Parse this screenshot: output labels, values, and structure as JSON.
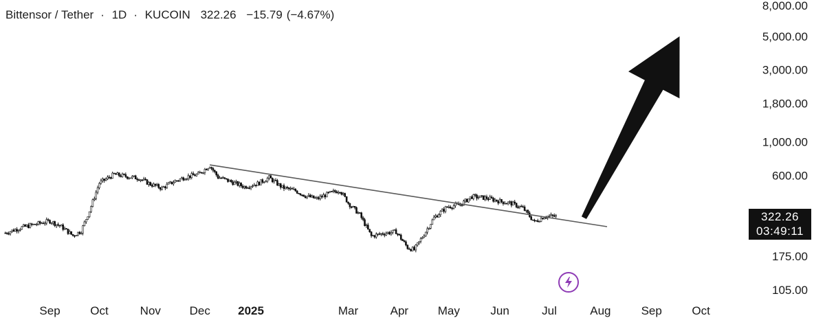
{
  "header": {
    "pair": "Bittensor / Tether",
    "interval": "1D",
    "exchange": "KUCOIN",
    "last": "322.26",
    "change": "−15.79",
    "change_pct": "(−4.67%)"
  },
  "price_label": {
    "price": "322.26",
    "countdown": "03:49:11"
  },
  "bolt": {
    "icon": "lightning-icon",
    "color": "#8e3bb5"
  },
  "chart_data": {
    "type": "candlestick",
    "scale": "log",
    "ylim": [
      75,
      8000
    ],
    "y_ticks": [
      "8,000.00",
      "5,000.00",
      "3,000.00",
      "1,800.00",
      "1,000.00",
      "600.00",
      "175.00",
      "105.00"
    ],
    "y_tick_values": [
      8000,
      5000,
      3000,
      1800,
      1000,
      600,
      175,
      105
    ],
    "x_ticks": [
      "Sep",
      "Oct",
      "Nov",
      "Dec",
      "2025",
      "Mar",
      "Apr",
      "May",
      "Jun",
      "Jul",
      "Aug",
      "Sep",
      "Oct"
    ],
    "x_tick_dates": [
      "2024-09-01",
      "2024-10-01",
      "2024-11-01",
      "2024-12-01",
      "2025-01-01",
      "2025-03-01",
      "2025-04-01",
      "2025-05-01",
      "2025-06-01",
      "2025-07-01",
      "2025-08-01",
      "2025-09-01",
      "2025-10-01"
    ],
    "bold_ticks": [
      "2025"
    ],
    "xlim": [
      "2024-08-03",
      "2025-10-22"
    ],
    "grid": false,
    "close_path": [
      [
        "2024-08-05",
        250
      ],
      [
        "2024-08-15",
        272
      ],
      [
        "2024-08-25",
        288
      ],
      [
        "2024-09-01",
        300
      ],
      [
        "2024-09-08",
        275
      ],
      [
        "2024-09-15",
        240
      ],
      [
        "2024-09-20",
        258
      ],
      [
        "2024-09-25",
        350
      ],
      [
        "2024-10-01",
        535
      ],
      [
        "2024-10-10",
        610
      ],
      [
        "2024-10-18",
        590
      ],
      [
        "2024-10-25",
        575
      ],
      [
        "2024-11-01",
        525
      ],
      [
        "2024-11-08",
        495
      ],
      [
        "2024-11-15",
        545
      ],
      [
        "2024-11-22",
        585
      ],
      [
        "2024-11-30",
        610
      ],
      [
        "2024-12-07",
        698
      ],
      [
        "2024-12-12",
        585
      ],
      [
        "2024-12-20",
        545
      ],
      [
        "2024-12-28",
        505
      ],
      [
        "2025-01-05",
        530
      ],
      [
        "2025-01-12",
        580
      ],
      [
        "2025-01-20",
        500
      ],
      [
        "2025-01-28",
        475
      ],
      [
        "2025-02-03",
        440
      ],
      [
        "2025-02-10",
        420
      ],
      [
        "2025-02-17",
        455
      ],
      [
        "2025-02-24",
        480
      ],
      [
        "2025-03-01",
        395
      ],
      [
        "2025-03-08",
        330
      ],
      [
        "2025-03-15",
        238
      ],
      [
        "2025-03-22",
        248
      ],
      [
        "2025-03-30",
        255
      ],
      [
        "2025-04-06",
        200
      ],
      [
        "2025-04-10",
        193
      ],
      [
        "2025-04-16",
        245
      ],
      [
        "2025-04-22",
        315
      ],
      [
        "2025-04-30",
        372
      ],
      [
        "2025-05-08",
        385
      ],
      [
        "2025-05-15",
        435
      ],
      [
        "2025-05-24",
        425
      ],
      [
        "2025-06-01",
        405
      ],
      [
        "2025-06-08",
        392
      ],
      [
        "2025-06-15",
        365
      ],
      [
        "2025-06-22",
        295
      ],
      [
        "2025-06-28",
        322
      ],
      [
        "2025-07-05",
        322.26
      ]
    ],
    "trendline": [
      [
        "2024-12-07",
        705
      ],
      [
        "2025-08-05",
        275
      ]
    ],
    "arrow": {
      "from": [
        "2025-07-22",
        315
      ],
      "to": [
        "2025-09-18",
        5000
      ],
      "color": "#111111"
    },
    "last_price": 322.26
  }
}
